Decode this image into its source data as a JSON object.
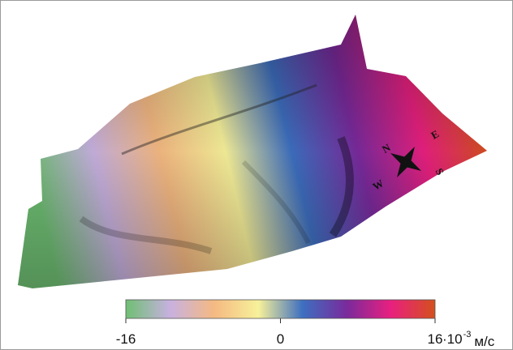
{
  "colorbar": {
    "ticks": [
      -16,
      0,
      16
    ],
    "unit": {
      "base": "·10",
      "exponent": "-3",
      "units": "м/с"
    },
    "colors": [
      "#6fbf73",
      "#c7b1e0",
      "#f5b982",
      "#f7f19a",
      "#3d6fc0",
      "#7a2a9c",
      "#e8207f",
      "#d4501c"
    ]
  },
  "compass": {
    "north": "N",
    "east": "E",
    "south": "S",
    "west": "W"
  }
}
